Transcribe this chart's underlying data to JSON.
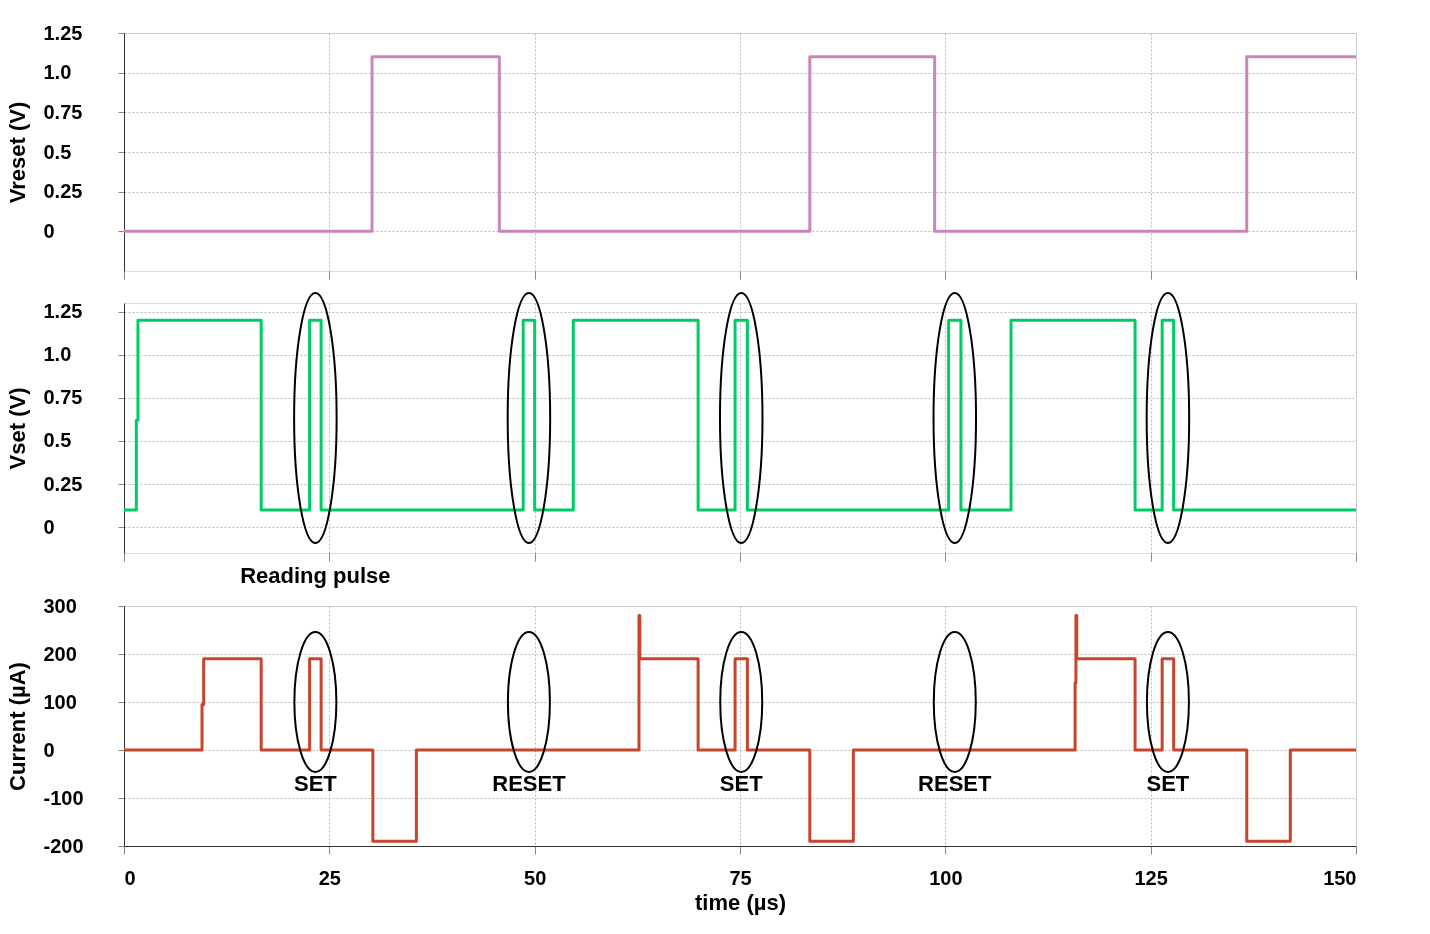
{
  "chart_data": [
    {
      "type": "step",
      "ylabel": "Vreset (V)",
      "xlim": [
        0,
        150
      ],
      "xticks": [
        0,
        25,
        50,
        75,
        100,
        125,
        150
      ],
      "ylim": [
        -0.25,
        1.25
      ],
      "yticks": [
        0,
        0.25,
        0.5,
        0.75,
        {
          "value": 1,
          "label": "1.0"
        },
        1.25
      ],
      "grid": true,
      "tick_labels": "y",
      "series": [
        {
          "color": "#c986bd",
          "x": [
            0,
            30.2,
            45.7,
            83.5,
            98.7,
            136.7,
            150
          ],
          "values": [
            0,
            1.1,
            0,
            1.1,
            0,
            1.1,
            1.1
          ]
        }
      ]
    },
    {
      "type": "step",
      "ylabel": "Vset (V)",
      "xlim": [
        0,
        150
      ],
      "xticks": [
        0,
        25,
        50,
        75,
        100,
        125,
        150
      ],
      "ylim": [
        -0.15,
        1.3
      ],
      "yticks": [
        0,
        0.25,
        0.5,
        0.75,
        {
          "value": 1,
          "label": "1.0"
        },
        1.25
      ],
      "grid": true,
      "tick_labels": "y",
      "annotations": [
        "Reading pulse"
      ],
      "series": [
        {
          "color": "#00cc66",
          "x": [
            0,
            1.5,
            1.7,
            16.7,
            22.6,
            24.0,
            48.6,
            50.0,
            54.7,
            69.9,
            74.4,
            75.9,
            100.4,
            101.9,
            108.0,
            123.1,
            126.4,
            127.8,
            150
          ],
          "values": [
            0.1,
            0.62,
            1.2,
            0.1,
            1.2,
            0.1,
            1.2,
            0.1,
            1.2,
            0.1,
            1.2,
            0.1,
            1.2,
            0.1,
            1.2,
            0.1,
            1.2,
            0.1,
            0.1
          ]
        }
      ]
    },
    {
      "type": "step",
      "ylabel": "Current (µA)",
      "xlabel": "time (µs)",
      "xlim": [
        0,
        150
      ],
      "xticks": [
        0,
        25,
        50,
        75,
        100,
        125,
        150
      ],
      "ylim": [
        -200,
        300
      ],
      "yticks": [
        300,
        200,
        100,
        0,
        -100,
        -200
      ],
      "grid": true,
      "annotations": [
        "SET",
        "RESET",
        "SET",
        "RESET",
        "SET"
      ],
      "series": [
        {
          "color": "#c8452d",
          "x": [
            0,
            9.5,
            9.7,
            16.7,
            22.6,
            24.0,
            30.3,
            35.6,
            62.7,
            62.8,
            69.9,
            74.4,
            75.9,
            83.5,
            88.8,
            115.8,
            115.9,
            116.0,
            123.1,
            126.4,
            127.8,
            136.7,
            142.0,
            150
          ],
          "values": [
            0,
            95,
            190,
            0,
            190,
            0,
            -190,
            0,
            280,
            190,
            0,
            190,
            0,
            -190,
            0,
            140,
            280,
            190,
            0,
            190,
            0,
            -190,
            0,
            0
          ]
        }
      ]
    }
  ]
}
